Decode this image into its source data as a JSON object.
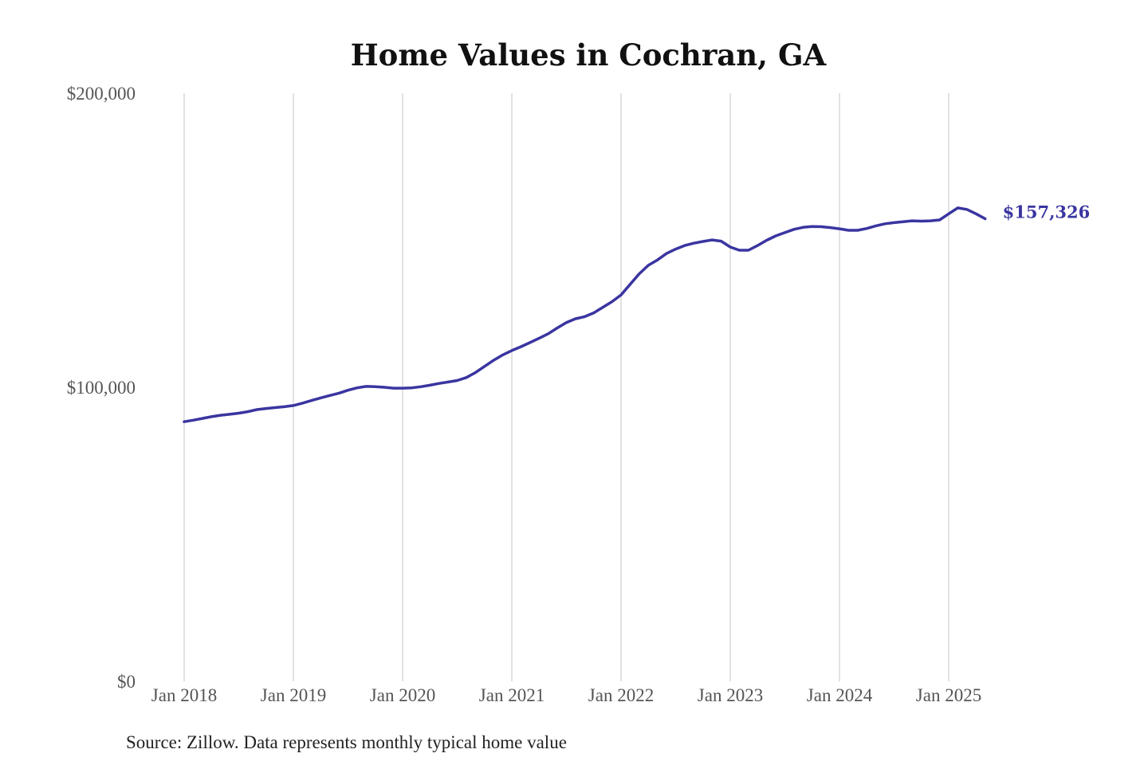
{
  "chart_data": {
    "type": "line",
    "title": "Home Values in Cochran, GA",
    "source": "Source: Zillow. Data represents monthly typical home value",
    "xlabel": "",
    "ylabel": "",
    "ylim": [
      0,
      200000
    ],
    "y_ticks": [
      0,
      100000,
      200000
    ],
    "y_tick_labels": [
      "$0",
      "$100,000",
      "$200,000"
    ],
    "x_tick_labels": [
      "Jan 2018",
      "Jan 2019",
      "Jan 2020",
      "Jan 2021",
      "Jan 2022",
      "Jan 2023",
      "Jan 2024",
      "Jan 2025"
    ],
    "x_start": "Jan 2018",
    "x_frequency": "monthly",
    "grid": "vertical",
    "line_color": "#3a35a0",
    "end_label": "$157,326",
    "series": [
      {
        "name": "Typical home value",
        "values": [
          88300,
          88800,
          89400,
          90000,
          90500,
          90800,
          91200,
          91700,
          92400,
          92800,
          93100,
          93400,
          93800,
          94600,
          95500,
          96400,
          97200,
          98000,
          99000,
          99800,
          100300,
          100200,
          100000,
          99700,
          99700,
          99800,
          100200,
          100700,
          101300,
          101800,
          102300,
          103300,
          105000,
          107100,
          109200,
          111000,
          112500,
          113800,
          115200,
          116700,
          118200,
          120200,
          122000,
          123300,
          124000,
          125300,
          127200,
          129100,
          131400,
          135000,
          138600,
          141500,
          143300,
          145500,
          147000,
          148200,
          149000,
          149600,
          150100,
          149700,
          147700,
          146600,
          146600,
          148200,
          150000,
          151500,
          152600,
          153700,
          154400,
          154700,
          154600,
          154300,
          153900,
          153400,
          153400,
          154000,
          154900,
          155600,
          156000,
          156300,
          156600,
          156500,
          156600,
          156900,
          159000,
          161000,
          160500,
          159000,
          157326
        ]
      }
    ]
  }
}
